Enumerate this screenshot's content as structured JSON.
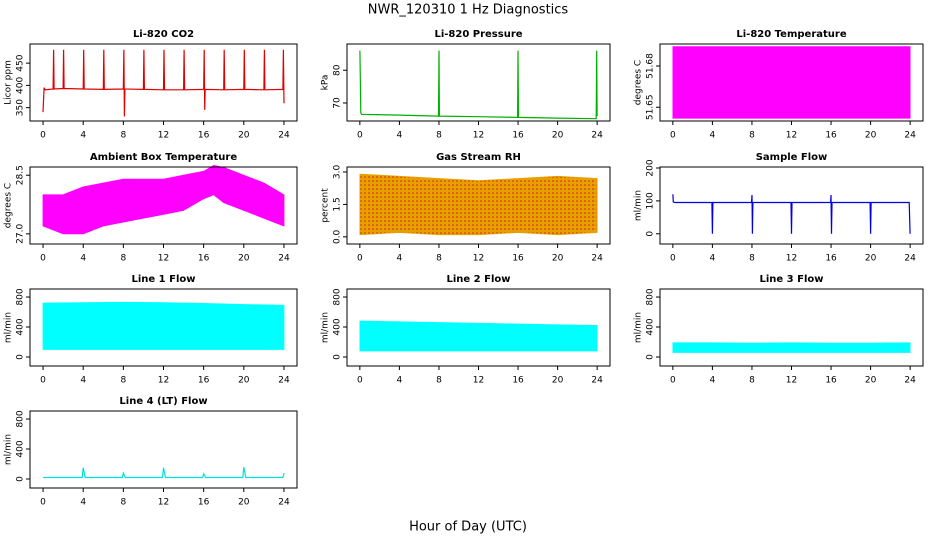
{
  "title": "NWR_120310  1 Hz Diagnostics",
  "xlabel": "Hour of Day (UTC)",
  "chart_data": [
    {
      "type": "line",
      "title": "Li-820 CO2",
      "ylabel": "Licor ppm",
      "xlim": [
        -1.3,
        25.3
      ],
      "xticks": [
        0,
        4,
        8,
        12,
        16,
        20,
        24
      ],
      "ylim": [
        320,
        493
      ],
      "yticks": [
        350,
        400,
        450
      ],
      "x": [
        0,
        0.1,
        0.2,
        1,
        1.05,
        1.1,
        2,
        2.05,
        2.1,
        4,
        4.05,
        4.1,
        6,
        6.05,
        6.1,
        8,
        8.05,
        8.1,
        8.15,
        10,
        10.05,
        10.1,
        12,
        12.05,
        12.1,
        14,
        14.05,
        14.1,
        16,
        16.05,
        16.1,
        16.15,
        18,
        18.05,
        18.1,
        20,
        20.05,
        20.1,
        22,
        22.05,
        22.1,
        23.9,
        23.95,
        24
      ],
      "series": [
        {
          "color": "#e00000",
          "values": [
            340,
            395,
            390,
            392,
            480,
            392,
            393,
            480,
            393,
            392,
            480,
            392,
            391,
            480,
            391,
            392,
            480,
            330,
            392,
            391,
            480,
            391,
            390,
            480,
            390,
            390,
            480,
            390,
            391,
            480,
            345,
            391,
            390,
            480,
            390,
            391,
            480,
            391,
            390,
            480,
            390,
            391,
            480,
            360
          ]
        }
      ]
    },
    {
      "type": "line",
      "title": "Li-820 Pressure",
      "ylabel": "kPa",
      "xlim": [
        -1.3,
        25.3
      ],
      "xticks": [
        0,
        4,
        8,
        12,
        16,
        20,
        24
      ],
      "ylim": [
        64.5,
        88
      ],
      "yticks": [
        70,
        80
      ],
      "x": [
        0,
        0.05,
        0.1,
        0.2,
        4,
        7.95,
        8,
        8.05,
        12,
        15.95,
        16,
        16.05,
        20,
        23.9,
        23.95,
        24
      ],
      "series": [
        {
          "color": "#00b000",
          "values": [
            86,
            78,
            67,
            66.5,
            66.3,
            66,
            86,
            66,
            65.8,
            65.6,
            86,
            65.6,
            65.4,
            65.2,
            86,
            66
          ]
        }
      ]
    },
    {
      "type": "band",
      "title": "Li-820 Temperature",
      "ylabel": "degrees C",
      "xlim": [
        -1.3,
        25.3
      ],
      "xticks": [
        0,
        4,
        8,
        12,
        16,
        20,
        24
      ],
      "ylim": [
        51.64,
        51.696
      ],
      "yticks": [
        51.65,
        51.68
      ],
      "x": [
        0,
        24
      ],
      "series": [
        {
          "color": "#ff00ff",
          "values": [
            51.694,
            51.694
          ]
        },
        {
          "color": "#ff00ff",
          "values": [
            51.642,
            51.642
          ]
        }
      ]
    },
    {
      "type": "band",
      "title": "Ambient Box Temperature",
      "ylabel": "degrees C",
      "xlim": [
        -1.3,
        25.3
      ],
      "xticks": [
        0,
        4,
        8,
        12,
        16,
        20,
        24
      ],
      "ylim": [
        26.74,
        28.71
      ],
      "yticks": [
        {
          "value": 27,
          "label": "27.0"
        },
        28.5
      ],
      "x": [
        0,
        2,
        4,
        6,
        8,
        10,
        12,
        14,
        16,
        17,
        18,
        20,
        22,
        24
      ],
      "series": [
        {
          "color": "#ff00ff",
          "values": [
            28.0,
            28.0,
            28.2,
            28.3,
            28.4,
            28.4,
            28.4,
            28.5,
            28.6,
            28.75,
            28.7,
            28.5,
            28.3,
            28.0
          ]
        },
        {
          "color": "#ff00ff",
          "values": [
            27.2,
            27.0,
            27.0,
            27.2,
            27.3,
            27.4,
            27.5,
            27.6,
            27.9,
            28.0,
            27.8,
            27.6,
            27.4,
            27.2
          ]
        }
      ]
    },
    {
      "type": "band",
      "title": "Gas Stream RH",
      "ylabel": "percent",
      "xlim": [
        -1.3,
        25.3
      ],
      "xticks": [
        0,
        4,
        8,
        12,
        16,
        20,
        24
      ],
      "ylim": [
        -0.33,
        3.23
      ],
      "yticks": [
        {
          "value": 0,
          "label": "0.0"
        },
        1.5,
        {
          "value": 3,
          "label": "3.0"
        }
      ],
      "x": [
        0,
        4,
        8,
        12,
        16,
        20,
        24
      ],
      "series": [
        {
          "color": "#e8a000",
          "values": [
            2.9,
            2.8,
            2.7,
            2.6,
            2.7,
            2.8,
            2.7
          ]
        },
        {
          "color": "#e8a000",
          "values": [
            0.1,
            0.2,
            0.1,
            0.1,
            0.2,
            0.1,
            0.2
          ]
        }
      ]
    },
    {
      "type": "line",
      "title": "Sample Flow",
      "ylabel": "ml/min",
      "xlim": [
        -1.3,
        25.3
      ],
      "xticks": [
        0,
        4,
        8,
        12,
        16,
        20,
        24
      ],
      "ylim": [
        -31,
        203
      ],
      "yticks": [
        0,
        100,
        200
      ],
      "x": [
        0,
        0.05,
        0.2,
        3.95,
        4,
        4.05,
        7.95,
        8,
        8.05,
        8.1,
        11.95,
        12,
        12.05,
        15.95,
        16,
        16.05,
        16.1,
        19.95,
        20,
        20.05,
        23.9,
        24
      ],
      "series": [
        {
          "color": "#0000e0",
          "values": [
            120,
            97,
            95,
            95,
            0,
            95,
            95,
            118,
            0,
            95,
            95,
            0,
            95,
            95,
            118,
            0,
            95,
            95,
            0,
            95,
            95,
            0
          ]
        }
      ]
    },
    {
      "type": "band",
      "title": "Line 1 Flow",
      "ylabel": "ml/min",
      "xlim": [
        -1.3,
        25.3
      ],
      "xticks": [
        0,
        4,
        8,
        12,
        16,
        20,
        24
      ],
      "ylim": [
        -120,
        907
      ],
      "yticks": [
        0,
        400,
        800
      ],
      "x": [
        0,
        4,
        8,
        12,
        16,
        20,
        24
      ],
      "series": [
        {
          "color": "#00ffff",
          "values": [
            720,
            725,
            730,
            725,
            715,
            700,
            690
          ]
        },
        {
          "color": "#00ffff",
          "values": [
            100,
            100,
            100,
            100,
            100,
            100,
            100
          ]
        }
      ]
    },
    {
      "type": "band",
      "title": "Line 2 Flow",
      "ylabel": "ml/min",
      "xlim": [
        -1.3,
        25.3
      ],
      "xticks": [
        0,
        4,
        8,
        12,
        16,
        20,
        24
      ],
      "ylim": [
        -120,
        907
      ],
      "yticks": [
        0,
        400,
        800
      ],
      "x": [
        0,
        4,
        8,
        12,
        16,
        20,
        24
      ],
      "series": [
        {
          "color": "#00ffff",
          "values": [
            480,
            470,
            460,
            450,
            440,
            430,
            420
          ]
        },
        {
          "color": "#00ffff",
          "values": [
            80,
            80,
            80,
            80,
            80,
            80,
            80
          ]
        }
      ]
    },
    {
      "type": "band",
      "title": "Line 3 Flow",
      "ylabel": "ml/min",
      "xlim": [
        -1.3,
        25.3
      ],
      "xticks": [
        0,
        4,
        8,
        12,
        16,
        20,
        24
      ],
      "ylim": [
        -120,
        907
      ],
      "yticks": [
        0,
        400,
        800
      ],
      "x": [
        0,
        4,
        8,
        12,
        16,
        20,
        24
      ],
      "series": [
        {
          "color": "#00ffff",
          "values": [
            190,
            190,
            185,
            190,
            185,
            185,
            190
          ]
        },
        {
          "color": "#00ffff",
          "values": [
            60,
            60,
            60,
            60,
            60,
            60,
            60
          ]
        }
      ]
    },
    {
      "type": "line",
      "title": "Line 4 (LT) Flow",
      "ylabel": "ml/min",
      "xlim": [
        -1.3,
        25.3
      ],
      "xticks": [
        0,
        4,
        8,
        12,
        16,
        20,
        24
      ],
      "ylim": [
        -120,
        907
      ],
      "yticks": [
        0,
        400,
        800
      ],
      "x": [
        0,
        3.9,
        4,
        4.2,
        7.9,
        8,
        8.2,
        11.9,
        12,
        12.2,
        15.9,
        16,
        16.2,
        19.9,
        20,
        20.2,
        23.9,
        24
      ],
      "series": [
        {
          "color": "#00e0e0",
          "values": [
            20,
            20,
            150,
            20,
            20,
            80,
            20,
            20,
            150,
            20,
            20,
            70,
            20,
            20,
            160,
            20,
            20,
            80
          ]
        }
      ]
    }
  ]
}
